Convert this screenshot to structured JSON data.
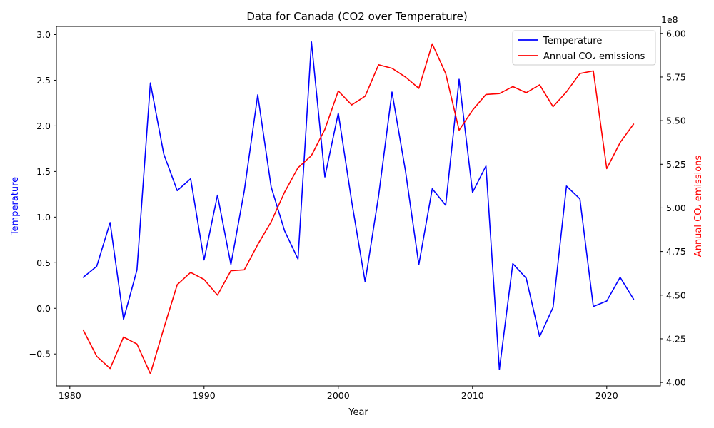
{
  "chart_data": {
    "type": "line",
    "title": "Data for Canada (CO2 over Temperature)",
    "xlabel": "Year",
    "ylabel_left": "Temperature",
    "ylabel_right": "Annual CO₂ emissions",
    "right_axis_multiplier": "1e8",
    "xlim": [
      1979,
      2024
    ],
    "ylim_left": [
      -0.85,
      3.09
    ],
    "ylim_right": [
      3.98,
      6.04
    ],
    "x_ticks": [
      1980,
      1990,
      2000,
      2010,
      2020
    ],
    "x_tick_labels": [
      "1980",
      "1990",
      "2000",
      "2010",
      "2020"
    ],
    "left_ticks": [
      -0.5,
      0.0,
      0.5,
      1.0,
      1.5,
      2.0,
      2.5,
      3.0
    ],
    "left_tick_labels": [
      "−0.5",
      "0.0",
      "0.5",
      "1.0",
      "1.5",
      "2.0",
      "2.5",
      "3.0"
    ],
    "right_ticks": [
      4.0,
      4.25,
      4.5,
      4.75,
      5.0,
      5.25,
      5.5,
      5.75,
      6.0
    ],
    "right_tick_labels": [
      "4.00",
      "4.25",
      "4.50",
      "4.75",
      "5.00",
      "5.25",
      "5.50",
      "5.75",
      "6.00"
    ],
    "legend_position": "top-right",
    "x": [
      1981,
      1982,
      1983,
      1984,
      1985,
      1986,
      1987,
      1988,
      1989,
      1990,
      1991,
      1992,
      1993,
      1994,
      1995,
      1996,
      1997,
      1998,
      1999,
      2000,
      2001,
      2002,
      2003,
      2004,
      2005,
      2006,
      2007,
      2008,
      2009,
      2010,
      2011,
      2012,
      2013,
      2014,
      2015,
      2016,
      2017,
      2018,
      2019,
      2020,
      2021,
      2022
    ],
    "series": [
      {
        "name": "Temperature",
        "axis": "left",
        "color": "#0000ff",
        "values": [
          0.34,
          0.46,
          0.94,
          -0.12,
          0.42,
          2.47,
          1.69,
          1.29,
          1.42,
          0.53,
          1.24,
          0.48,
          1.29,
          2.34,
          1.33,
          0.85,
          0.54,
          2.92,
          1.44,
          2.14,
          1.17,
          0.29,
          1.23,
          2.37,
          1.51,
          0.48,
          1.31,
          1.13,
          2.51,
          1.27,
          1.56,
          -0.67,
          0.49,
          0.33,
          -0.31,
          0.01,
          1.34,
          1.2,
          0.02,
          0.08,
          0.34,
          0.1
        ]
      },
      {
        "name": "Annual CO₂ emissions",
        "axis": "right",
        "color": "#ff0000",
        "values": [
          4.3,
          4.15,
          4.08,
          4.26,
          4.22,
          4.05,
          4.31,
          4.56,
          4.63,
          4.59,
          4.5,
          4.64,
          4.645,
          4.79,
          4.92,
          5.09,
          5.23,
          5.3,
          5.45,
          5.67,
          5.59,
          5.64,
          5.82,
          5.8,
          5.75,
          5.685,
          5.94,
          5.77,
          5.445,
          5.56,
          5.65,
          5.655,
          5.695,
          5.66,
          5.705,
          5.58,
          5.665,
          5.77,
          5.785,
          5.225,
          5.375,
          5.48
        ]
      }
    ]
  }
}
